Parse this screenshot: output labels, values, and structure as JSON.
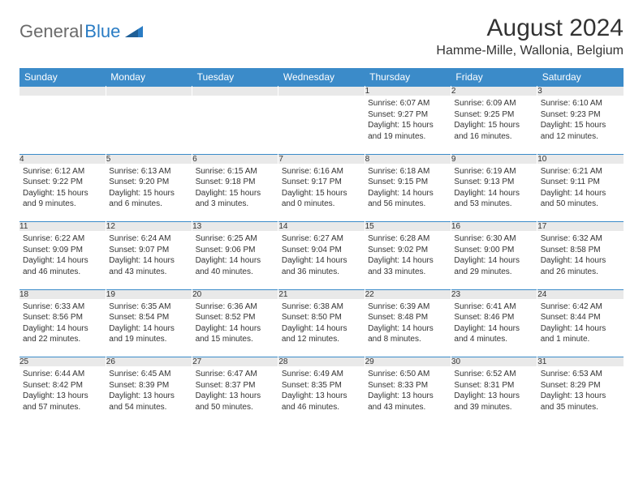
{
  "logo": {
    "general": "General",
    "blue": "Blue"
  },
  "header": {
    "monthTitle": "August 2024",
    "location": "Hamme-Mille, Wallonia, Belgium"
  },
  "colors": {
    "header_bg": "#3b8bc9",
    "header_fg": "#ffffff",
    "daynum_bg": "#e9e9e9",
    "border": "#3b8bc9",
    "logo_gray": "#6a6a6a",
    "logo_blue": "#2a7cc4"
  },
  "weekdays": [
    "Sunday",
    "Monday",
    "Tuesday",
    "Wednesday",
    "Thursday",
    "Friday",
    "Saturday"
  ],
  "weeks": [
    [
      null,
      null,
      null,
      null,
      {
        "n": "1",
        "sr": "Sunrise: 6:07 AM",
        "ss": "Sunset: 9:27 PM",
        "d1": "Daylight: 15 hours",
        "d2": "and 19 minutes."
      },
      {
        "n": "2",
        "sr": "Sunrise: 6:09 AM",
        "ss": "Sunset: 9:25 PM",
        "d1": "Daylight: 15 hours",
        "d2": "and 16 minutes."
      },
      {
        "n": "3",
        "sr": "Sunrise: 6:10 AM",
        "ss": "Sunset: 9:23 PM",
        "d1": "Daylight: 15 hours",
        "d2": "and 12 minutes."
      }
    ],
    [
      {
        "n": "4",
        "sr": "Sunrise: 6:12 AM",
        "ss": "Sunset: 9:22 PM",
        "d1": "Daylight: 15 hours",
        "d2": "and 9 minutes."
      },
      {
        "n": "5",
        "sr": "Sunrise: 6:13 AM",
        "ss": "Sunset: 9:20 PM",
        "d1": "Daylight: 15 hours",
        "d2": "and 6 minutes."
      },
      {
        "n": "6",
        "sr": "Sunrise: 6:15 AM",
        "ss": "Sunset: 9:18 PM",
        "d1": "Daylight: 15 hours",
        "d2": "and 3 minutes."
      },
      {
        "n": "7",
        "sr": "Sunrise: 6:16 AM",
        "ss": "Sunset: 9:17 PM",
        "d1": "Daylight: 15 hours",
        "d2": "and 0 minutes."
      },
      {
        "n": "8",
        "sr": "Sunrise: 6:18 AM",
        "ss": "Sunset: 9:15 PM",
        "d1": "Daylight: 14 hours",
        "d2": "and 56 minutes."
      },
      {
        "n": "9",
        "sr": "Sunrise: 6:19 AM",
        "ss": "Sunset: 9:13 PM",
        "d1": "Daylight: 14 hours",
        "d2": "and 53 minutes."
      },
      {
        "n": "10",
        "sr": "Sunrise: 6:21 AM",
        "ss": "Sunset: 9:11 PM",
        "d1": "Daylight: 14 hours",
        "d2": "and 50 minutes."
      }
    ],
    [
      {
        "n": "11",
        "sr": "Sunrise: 6:22 AM",
        "ss": "Sunset: 9:09 PM",
        "d1": "Daylight: 14 hours",
        "d2": "and 46 minutes."
      },
      {
        "n": "12",
        "sr": "Sunrise: 6:24 AM",
        "ss": "Sunset: 9:07 PM",
        "d1": "Daylight: 14 hours",
        "d2": "and 43 minutes."
      },
      {
        "n": "13",
        "sr": "Sunrise: 6:25 AM",
        "ss": "Sunset: 9:06 PM",
        "d1": "Daylight: 14 hours",
        "d2": "and 40 minutes."
      },
      {
        "n": "14",
        "sr": "Sunrise: 6:27 AM",
        "ss": "Sunset: 9:04 PM",
        "d1": "Daylight: 14 hours",
        "d2": "and 36 minutes."
      },
      {
        "n": "15",
        "sr": "Sunrise: 6:28 AM",
        "ss": "Sunset: 9:02 PM",
        "d1": "Daylight: 14 hours",
        "d2": "and 33 minutes."
      },
      {
        "n": "16",
        "sr": "Sunrise: 6:30 AM",
        "ss": "Sunset: 9:00 PM",
        "d1": "Daylight: 14 hours",
        "d2": "and 29 minutes."
      },
      {
        "n": "17",
        "sr": "Sunrise: 6:32 AM",
        "ss": "Sunset: 8:58 PM",
        "d1": "Daylight: 14 hours",
        "d2": "and 26 minutes."
      }
    ],
    [
      {
        "n": "18",
        "sr": "Sunrise: 6:33 AM",
        "ss": "Sunset: 8:56 PM",
        "d1": "Daylight: 14 hours",
        "d2": "and 22 minutes."
      },
      {
        "n": "19",
        "sr": "Sunrise: 6:35 AM",
        "ss": "Sunset: 8:54 PM",
        "d1": "Daylight: 14 hours",
        "d2": "and 19 minutes."
      },
      {
        "n": "20",
        "sr": "Sunrise: 6:36 AM",
        "ss": "Sunset: 8:52 PM",
        "d1": "Daylight: 14 hours",
        "d2": "and 15 minutes."
      },
      {
        "n": "21",
        "sr": "Sunrise: 6:38 AM",
        "ss": "Sunset: 8:50 PM",
        "d1": "Daylight: 14 hours",
        "d2": "and 12 minutes."
      },
      {
        "n": "22",
        "sr": "Sunrise: 6:39 AM",
        "ss": "Sunset: 8:48 PM",
        "d1": "Daylight: 14 hours",
        "d2": "and 8 minutes."
      },
      {
        "n": "23",
        "sr": "Sunrise: 6:41 AM",
        "ss": "Sunset: 8:46 PM",
        "d1": "Daylight: 14 hours",
        "d2": "and 4 minutes."
      },
      {
        "n": "24",
        "sr": "Sunrise: 6:42 AM",
        "ss": "Sunset: 8:44 PM",
        "d1": "Daylight: 14 hours",
        "d2": "and 1 minute."
      }
    ],
    [
      {
        "n": "25",
        "sr": "Sunrise: 6:44 AM",
        "ss": "Sunset: 8:42 PM",
        "d1": "Daylight: 13 hours",
        "d2": "and 57 minutes."
      },
      {
        "n": "26",
        "sr": "Sunrise: 6:45 AM",
        "ss": "Sunset: 8:39 PM",
        "d1": "Daylight: 13 hours",
        "d2": "and 54 minutes."
      },
      {
        "n": "27",
        "sr": "Sunrise: 6:47 AM",
        "ss": "Sunset: 8:37 PM",
        "d1": "Daylight: 13 hours",
        "d2": "and 50 minutes."
      },
      {
        "n": "28",
        "sr": "Sunrise: 6:49 AM",
        "ss": "Sunset: 8:35 PM",
        "d1": "Daylight: 13 hours",
        "d2": "and 46 minutes."
      },
      {
        "n": "29",
        "sr": "Sunrise: 6:50 AM",
        "ss": "Sunset: 8:33 PM",
        "d1": "Daylight: 13 hours",
        "d2": "and 43 minutes."
      },
      {
        "n": "30",
        "sr": "Sunrise: 6:52 AM",
        "ss": "Sunset: 8:31 PM",
        "d1": "Daylight: 13 hours",
        "d2": "and 39 minutes."
      },
      {
        "n": "31",
        "sr": "Sunrise: 6:53 AM",
        "ss": "Sunset: 8:29 PM",
        "d1": "Daylight: 13 hours",
        "d2": "and 35 minutes."
      }
    ]
  ]
}
